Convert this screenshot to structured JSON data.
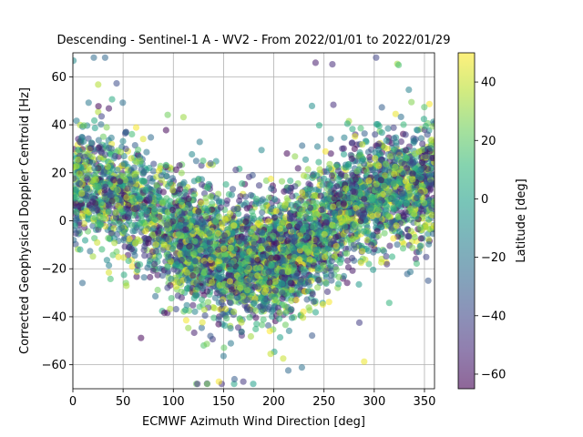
{
  "chart_data": {
    "type": "scatter",
    "title": "Descending - Sentinel-1 A - WV2 - From 2022/01/01 to 2022/01/29",
    "xlabel": "ECMWF Azimuth Wind Direction [deg]",
    "ylabel": "Corrected Geophysical Doppler Centroid [Hz]",
    "xlim": [
      0,
      360
    ],
    "ylim": [
      -70,
      70
    ],
    "xticks": [
      0,
      50,
      100,
      150,
      200,
      250,
      300,
      350
    ],
    "yticks": [
      -60,
      -40,
      -20,
      0,
      20,
      40,
      60
    ],
    "grid": true,
    "colorbar": {
      "label": "Latitude [deg]",
      "range": [
        -65,
        50
      ],
      "ticks": [
        -60,
        -40,
        -20,
        0,
        20,
        40
      ],
      "colormap": "viridis",
      "alpha": 0.6
    },
    "point_alpha": 0.55,
    "trend": [
      {
        "x": 0,
        "y": 15
      },
      {
        "x": 30,
        "y": 13
      },
      {
        "x": 60,
        "y": 7
      },
      {
        "x": 90,
        "y": -2
      },
      {
        "x": 120,
        "y": -10
      },
      {
        "x": 150,
        "y": -16
      },
      {
        "x": 175,
        "y": -18
      },
      {
        "x": 200,
        "y": -17
      },
      {
        "x": 225,
        "y": -12
      },
      {
        "x": 250,
        "y": -3
      },
      {
        "x": 275,
        "y": 6
      },
      {
        "x": 300,
        "y": 12
      },
      {
        "x": 330,
        "y": 15
      },
      {
        "x": 360,
        "y": 16
      }
    ],
    "n_points": 5200,
    "spread_hz": 12
  }
}
